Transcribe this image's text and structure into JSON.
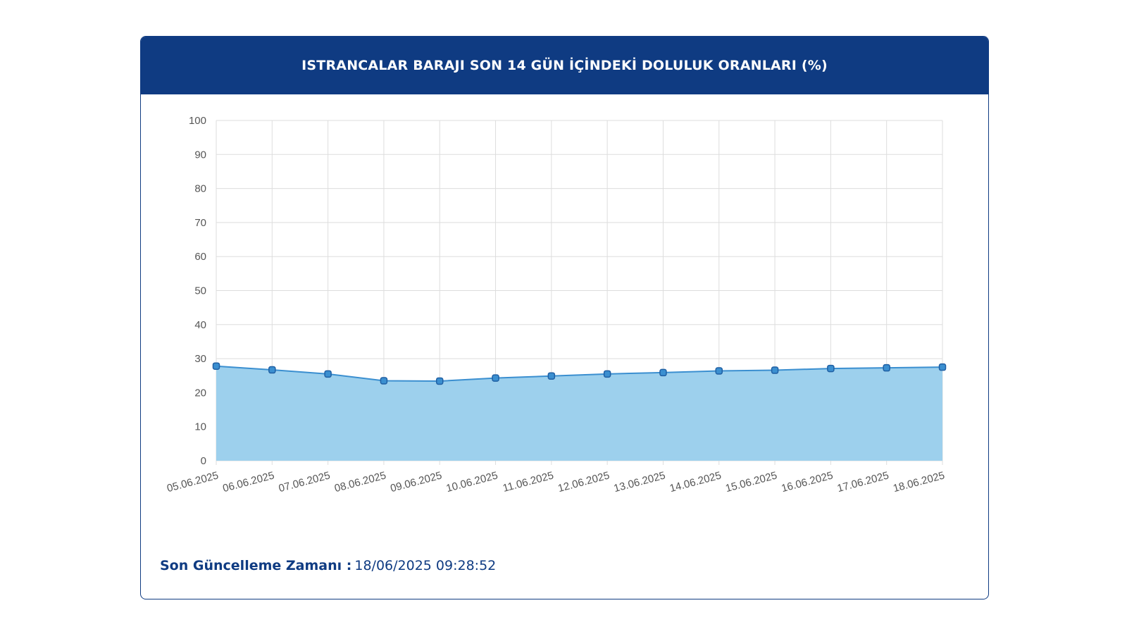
{
  "card": {
    "title": "ISTRANCALAR BARAJI SON 14 GÜN İÇİNDEKİ DOLULUK ORANLARI (%)",
    "footer_label": "Son Güncelleme Zamanı :",
    "footer_value": "18/06/2025 09:28:52"
  },
  "colors": {
    "header_bg": "#0f3b82",
    "area_fill": "#9dd0ed",
    "line": "#3b8fd0",
    "marker_stroke": "#1f5fa3",
    "grid": "#dddddd"
  },
  "chart_data": {
    "type": "area",
    "title": "ISTRANCALAR BARAJI SON 14 GÜN İÇİNDEKİ DOLULUK ORANLARI (%)",
    "xlabel": "",
    "ylabel": "",
    "ylim": [
      0,
      100
    ],
    "yticks": [
      0,
      10,
      20,
      30,
      40,
      50,
      60,
      70,
      80,
      90,
      100
    ],
    "grid": true,
    "categories": [
      "05.06.2025",
      "06.06.2025",
      "07.06.2025",
      "08.06.2025",
      "09.06.2025",
      "10.06.2025",
      "11.06.2025",
      "12.06.2025",
      "13.06.2025",
      "14.06.2025",
      "15.06.2025",
      "16.06.2025",
      "17.06.2025",
      "18.06.2025"
    ],
    "values": [
      27.8,
      26.7,
      25.5,
      23.5,
      23.4,
      24.3,
      24.9,
      25.5,
      25.9,
      26.4,
      26.6,
      27.1,
      27.3,
      27.5
    ]
  }
}
